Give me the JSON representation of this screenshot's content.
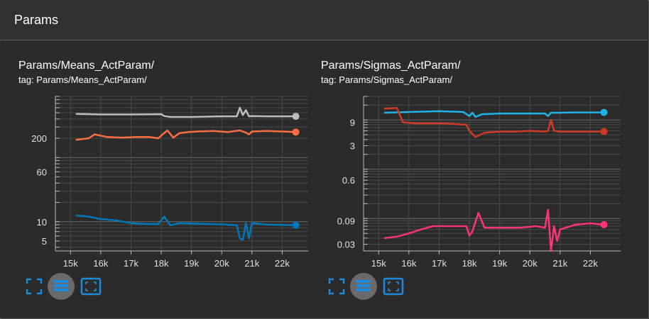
{
  "header": {
    "title": "Params"
  },
  "colors": {
    "gray": "#bdbdbd",
    "orange": "#ff6e42",
    "orange_dark": "#cc4125",
    "blue": "#0077bb",
    "cyan": "#1fb3e6",
    "red": "#d03b27",
    "pink": "#ff3377",
    "button_blue": "#1a8be0"
  },
  "panels": [
    {
      "title": "Params/Means_ActParam/",
      "tag": "tag: Params/Means_ActParam/",
      "controls": {
        "icons": [
          "fullscreen-icon",
          "data-table-icon",
          "fit-domain-icon"
        ]
      }
    },
    {
      "title": "Params/Sigmas_ActParam/",
      "tag": "tag: Params/Sigmas_ActParam/",
      "controls": {
        "icons": [
          "fullscreen-icon",
          "data-table-icon",
          "fit-domain-icon"
        ]
      }
    }
  ],
  "chart_data": [
    {
      "type": "line",
      "yscale": "log",
      "xlim": [
        14500,
        23000
      ],
      "ylim": [
        3.5,
        900
      ],
      "x_ticks": [
        15000,
        16000,
        17000,
        18000,
        19000,
        20000,
        21000,
        22000
      ],
      "x_tick_labels": [
        "15k",
        "16k",
        "17k",
        "18k",
        "19k",
        "20k",
        "21k",
        "22k"
      ],
      "y_ticks": [
        5,
        10,
        60,
        200
      ],
      "y_tick_labels": [
        "5",
        "10",
        "60",
        "200"
      ],
      "grid": true,
      "series": [
        {
          "color": "#bdbdbd",
          "x": [
            15200,
            16000,
            17000,
            18000,
            18100,
            18300,
            19000,
            20000,
            20500,
            20600,
            20700,
            20800,
            20900,
            21000,
            21500,
            22000,
            22450
          ],
          "values": [
            480,
            470,
            470,
            475,
            445,
            430,
            430,
            440,
            440,
            600,
            460,
            550,
            440,
            445,
            440,
            440,
            440
          ]
        },
        {
          "color": "#ff6e42",
          "x": [
            15200,
            15600,
            15800,
            16200,
            16700,
            17200,
            17600,
            17900,
            18000,
            18200,
            18400,
            18600,
            18900,
            19200,
            19700,
            20200,
            20600,
            20800,
            20900,
            21000,
            21500,
            22000,
            22450
          ],
          "values": [
            190,
            200,
            230,
            210,
            205,
            210,
            210,
            200,
            220,
            265,
            205,
            240,
            250,
            255,
            260,
            250,
            265,
            245,
            230,
            255,
            260,
            255,
            250
          ]
        },
        {
          "color": "#0077bb",
          "x": [
            15200,
            15600,
            16000,
            16500,
            17000,
            17500,
            17900,
            18100,
            18300,
            18600,
            19000,
            19500,
            20000,
            20500,
            20600,
            20700,
            20800,
            20900,
            21000,
            21500,
            22000,
            22450
          ],
          "values": [
            12.5,
            12,
            11,
            10.5,
            9.5,
            9.2,
            9.2,
            12,
            8.8,
            9.5,
            9.4,
            9.2,
            9.1,
            8.8,
            5.5,
            5.2,
            9.5,
            5.5,
            9.5,
            9,
            8.9,
            8.8
          ]
        }
      ]
    },
    {
      "type": "line",
      "yscale": "log",
      "xlim": [
        14500,
        23000
      ],
      "ylim": [
        0.022,
        30
      ],
      "x_ticks": [
        15000,
        16000,
        17000,
        18000,
        19000,
        20000,
        21000,
        22000
      ],
      "x_tick_labels": [
        "15k",
        "16k",
        "17k",
        "18k",
        "19k",
        "20k",
        "21k",
        "22k"
      ],
      "y_ticks": [
        0.03,
        0.09,
        0.6,
        3,
        9
      ],
      "y_tick_labels": [
        "0.03",
        "0.09",
        "0.6",
        "3",
        "9"
      ],
      "grid": true,
      "series": [
        {
          "color": "#1fb3e6",
          "x": [
            15200,
            16000,
            17000,
            17800,
            18000,
            18100,
            18200,
            18400,
            19000,
            20000,
            20500,
            20600,
            20700,
            21000,
            21500,
            22000,
            22450
          ],
          "values": [
            14,
            14.5,
            15,
            14.5,
            12,
            14,
            11.5,
            13,
            13.5,
            13.5,
            13.5,
            12,
            14,
            14,
            14.2,
            14.2,
            14.2
          ]
        },
        {
          "color": "#d03b27",
          "x": [
            15200,
            15600,
            15800,
            16200,
            16700,
            17200,
            17600,
            17900,
            18000,
            18200,
            18500,
            19000,
            19500,
            20000,
            20500,
            20600,
            20700,
            20800,
            21000,
            21500,
            22000,
            22450
          ],
          "values": [
            17,
            17.5,
            9,
            8.5,
            8.5,
            8.5,
            8.2,
            8,
            6,
            4.5,
            5.5,
            5.8,
            5.8,
            6,
            5.8,
            6,
            10,
            6,
            5.8,
            5.8,
            5.8,
            5.8
          ]
        },
        {
          "color": "#ff3377",
          "x": [
            15200,
            15600,
            16000,
            16400,
            16800,
            17200,
            17600,
            17900,
            18000,
            18100,
            18300,
            18500,
            18800,
            19200,
            19700,
            20200,
            20500,
            20600,
            20700,
            20800,
            20900,
            21000,
            21500,
            22000,
            22450
          ],
          "values": [
            0.04,
            0.043,
            0.05,
            0.06,
            0.07,
            0.07,
            0.07,
            0.07,
            0.045,
            0.055,
            0.13,
            0.065,
            0.065,
            0.065,
            0.065,
            0.07,
            0.065,
            0.15,
            0.022,
            0.07,
            0.035,
            0.06,
            0.075,
            0.08,
            0.075
          ]
        }
      ]
    }
  ]
}
